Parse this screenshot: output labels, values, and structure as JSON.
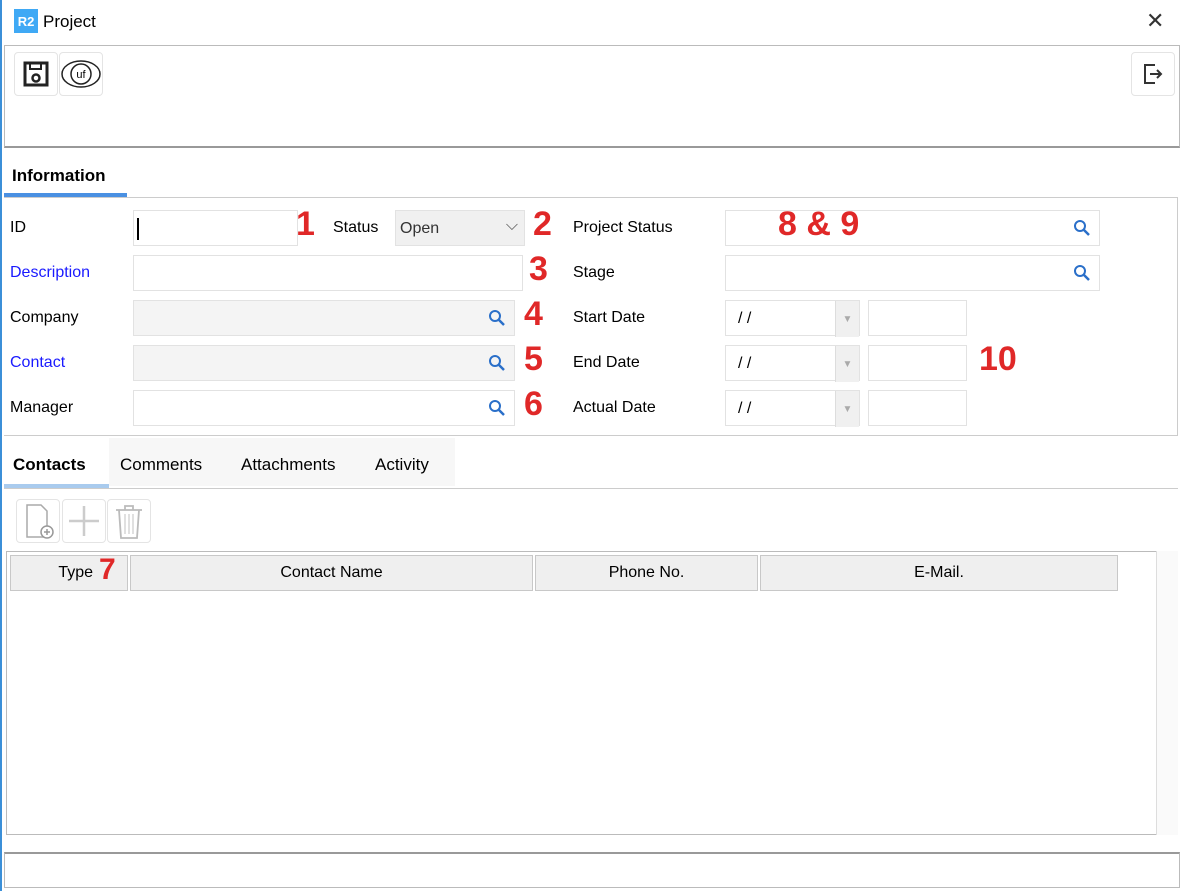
{
  "window": {
    "title": "Project",
    "logo": "R2",
    "close": "✕"
  },
  "toolbar": {
    "icons": [
      "save-icon",
      "uf-view-icon",
      "exit-icon"
    ],
    "uf": "uf"
  },
  "main_tab": "Information",
  "form": {
    "id_label": "ID",
    "id_value": "",
    "status_label": "Status",
    "status_value": "Open",
    "description_label": "Description",
    "company_label": "Company",
    "contact_label": "Contact",
    "manager_label": "Manager",
    "project_status_label": "Project Status",
    "stage_label": "Stage",
    "start_date_label": "Start Date",
    "start_date_value": "/ /",
    "end_date_label": "End Date",
    "end_date_value": "/ /",
    "actual_date_label": "Actual Date",
    "actual_date_value": "/ /"
  },
  "annotations": [
    "1",
    "2",
    "3",
    "4",
    "5",
    "6",
    "7",
    "8 & 9",
    "10"
  ],
  "sub_tabs": [
    "Contacts",
    "Comments",
    "Attachments",
    "Activity"
  ],
  "table": {
    "columns": [
      "Type",
      "Contact Name",
      "Phone No.",
      "E-Mail."
    ],
    "rows": []
  },
  "colors": {
    "accent": "#3b8fd8",
    "annotation": "#e02828",
    "link_label": "#1a1aff"
  }
}
